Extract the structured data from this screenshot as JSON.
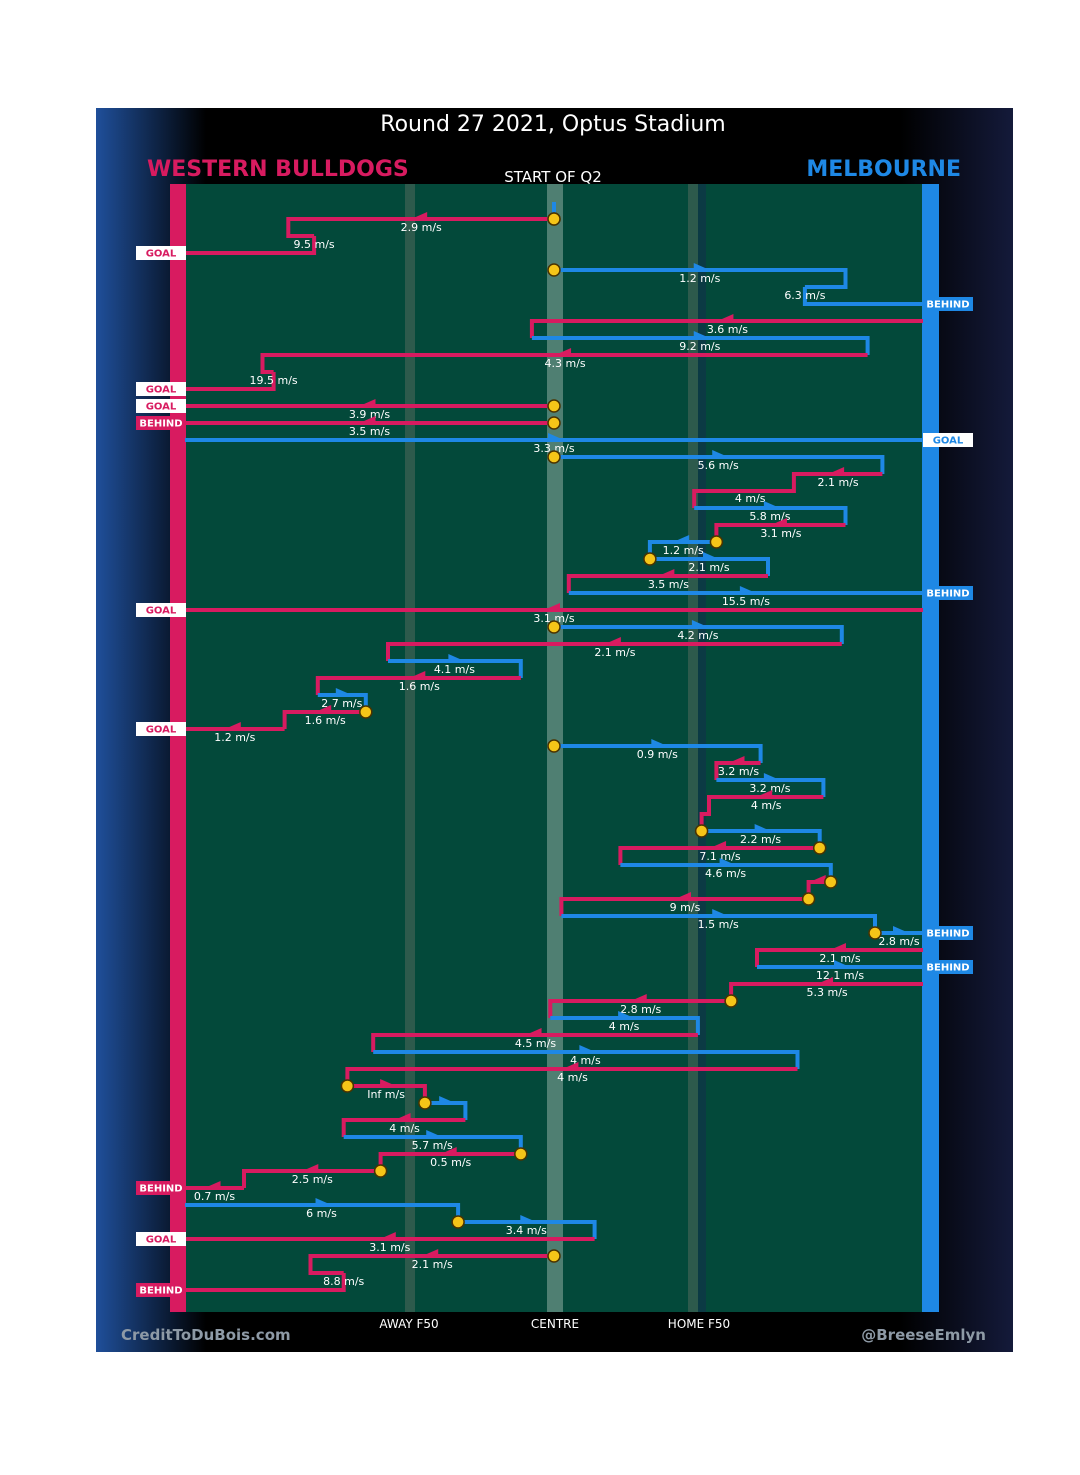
{
  "title": "Round 27 2021, Optus Stadium",
  "subtitle": "START OF Q2",
  "teams": {
    "left": {
      "name": "WESTERN BULLDOGS",
      "color": "#d81b60"
    },
    "right": {
      "name": "MELBOURNE",
      "color": "#1e88e5"
    }
  },
  "axis_labels": [
    "AWAY F50",
    "CENTRE",
    "HOME F50"
  ],
  "credit_left": "CreditToDuBois.com",
  "credit_right": "@BreeseEmlyn",
  "colors": {
    "field": "#03493a",
    "pink": "#d81b60",
    "blue": "#1e88e5",
    "stoppage": "#f5c518",
    "frame": "#000000"
  },
  "chart_data": {
    "type": "line",
    "description_units": "x: field position from left goal (0) to right goal (100); y: chain sequence (top to bottom)",
    "xlim": [
      0,
      100
    ],
    "x_ticks": [
      {
        "label": "AWAY F50",
        "x": 30.4
      },
      {
        "label": "CENTRE",
        "x": 50
      },
      {
        "label": "HOME F50",
        "x": 69.6
      }
    ],
    "stoppage_marker": "circle",
    "chains": [
      {
        "team": "blue",
        "speed": "",
        "end": "",
        "pts": [
          [
            50,
            1
          ],
          [
            50,
            0
          ]
        ],
        "start_marker": true
      },
      {
        "team": "pink",
        "speed": "2.9 m/s",
        "end": "",
        "pts": [
          [
            50,
            1
          ],
          [
            14,
            1
          ],
          [
            14,
            2
          ],
          [
            17.5,
            2
          ]
        ],
        "start_marker": true
      },
      {
        "team": "pink",
        "speed": "9.5 m/s",
        "end": "GOAL",
        "pts": [
          [
            17.5,
            2
          ],
          [
            17.5,
            3
          ],
          [
            0,
            3
          ]
        ]
      },
      {
        "team": "blue",
        "speed": "1.2 m/s",
        "end": "",
        "pts": [
          [
            50,
            4
          ],
          [
            89.5,
            4
          ],
          [
            89.5,
            5
          ],
          [
            84,
            5
          ]
        ],
        "start_marker": true
      },
      {
        "team": "blue",
        "speed": "6.3 m/s",
        "end": "BEHIND",
        "pts": [
          [
            84,
            5
          ],
          [
            84,
            6
          ],
          [
            100,
            6
          ]
        ]
      },
      {
        "team": "pink",
        "speed": "3.6 m/s",
        "end": "",
        "pts": [
          [
            100,
            7
          ],
          [
            47,
            7
          ],
          [
            47,
            8
          ]
        ]
      },
      {
        "team": "blue",
        "speed": "9.2 m/s",
        "end": "",
        "pts": [
          [
            47,
            8
          ],
          [
            92.5,
            8
          ],
          [
            92.5,
            9
          ]
        ]
      },
      {
        "team": "pink",
        "speed": "4.3 m/s",
        "end": "",
        "pts": [
          [
            92.5,
            9
          ],
          [
            10.5,
            9
          ],
          [
            10.5,
            10
          ],
          [
            12,
            10
          ]
        ]
      },
      {
        "team": "pink",
        "speed": "19.5 m/s",
        "end": "GOAL",
        "pts": [
          [
            12,
            10
          ],
          [
            12,
            11
          ],
          [
            0,
            11
          ]
        ]
      },
      {
        "team": "pink",
        "speed": "3.9 m/s",
        "end": "GOAL",
        "pts": [
          [
            50,
            12
          ],
          [
            0,
            12
          ]
        ],
        "start_marker": true
      },
      {
        "team": "pink",
        "speed": "3.5 m/s",
        "end": "BEHIND",
        "pts": [
          [
            50,
            13
          ],
          [
            0,
            13
          ]
        ],
        "start_marker": true
      },
      {
        "team": "blue",
        "speed": "3.3 m/s",
        "end": "GOAL",
        "pts": [
          [
            0,
            14
          ],
          [
            100,
            14
          ]
        ]
      },
      {
        "team": "blue",
        "speed": "5.6 m/s",
        "end": "",
        "pts": [
          [
            50,
            15
          ],
          [
            94.5,
            15
          ],
          [
            94.5,
            16
          ]
        ],
        "start_marker": true
      },
      {
        "team": "pink",
        "speed": "2.1 m/s",
        "end": "",
        "pts": [
          [
            94.5,
            16
          ],
          [
            82.5,
            16
          ],
          [
            82.5,
            17
          ],
          [
            69,
            17
          ],
          [
            69,
            18
          ]
        ]
      },
      {
        "team": "pink",
        "speed": "4 m/s",
        "end": "",
        "pts": []
      },
      {
        "team": "blue",
        "speed": "5.8 m/s",
        "end": "",
        "pts": [
          [
            69,
            18
          ],
          [
            89.5,
            18
          ],
          [
            89.5,
            19
          ]
        ]
      },
      {
        "team": "pink",
        "speed": "3.1 m/s",
        "end": "",
        "pts": [
          [
            89.5,
            19
          ],
          [
            72,
            19
          ],
          [
            72,
            20
          ]
        ]
      },
      {
        "team": "blue",
        "speed": "1.2 m/s",
        "end": "",
        "pts": [
          [
            72,
            20
          ],
          [
            63,
            20
          ],
          [
            63,
            21
          ]
        ],
        "start_marker": true
      },
      {
        "team": "blue",
        "speed": "2.1 m/s",
        "end": "",
        "pts": [
          [
            63,
            21
          ],
          [
            79,
            21
          ],
          [
            79,
            22
          ]
        ],
        "start_marker": true
      },
      {
        "team": "pink",
        "speed": "3.5 m/s",
        "end": "",
        "pts": [
          [
            79,
            22
          ],
          [
            52,
            22
          ],
          [
            52,
            23
          ]
        ]
      },
      {
        "team": "blue",
        "speed": "15.5 m/s",
        "end": "BEHIND",
        "pts": [
          [
            52,
            23
          ],
          [
            100,
            23
          ]
        ]
      },
      {
        "team": "pink",
        "speed": "3.1 m/s",
        "end": "GOAL",
        "pts": [
          [
            100,
            24
          ],
          [
            0,
            24
          ]
        ]
      },
      {
        "team": "blue",
        "speed": "4.2 m/s",
        "end": "",
        "pts": [
          [
            50,
            25
          ],
          [
            89,
            25
          ],
          [
            89,
            26
          ]
        ],
        "start_marker": true
      },
      {
        "team": "pink",
        "speed": "2.1 m/s",
        "end": "",
        "pts": [
          [
            89,
            26
          ],
          [
            27.5,
            26
          ],
          [
            27.5,
            27
          ]
        ]
      },
      {
        "team": "blue",
        "speed": "4.1 m/s",
        "end": "",
        "pts": [
          [
            27.5,
            27
          ],
          [
            45.5,
            27
          ],
          [
            45.5,
            28
          ]
        ]
      },
      {
        "team": "pink",
        "speed": "1.6 m/s",
        "end": "",
        "pts": [
          [
            45.5,
            28
          ],
          [
            18,
            28
          ],
          [
            18,
            29
          ]
        ]
      },
      {
        "team": "blue",
        "speed": "2.7 m/s",
        "end": "",
        "pts": [
          [
            18,
            29
          ],
          [
            24.5,
            29
          ],
          [
            24.5,
            30
          ]
        ]
      },
      {
        "team": "pink",
        "speed": "1.6 m/s",
        "end": "",
        "pts": [
          [
            24.5,
            30
          ],
          [
            13.5,
            30
          ],
          [
            13.5,
            31
          ]
        ],
        "start_marker": true
      },
      {
        "team": "pink",
        "speed": "1.2 m/s",
        "end": "GOAL",
        "pts": [
          [
            13.5,
            31
          ],
          [
            0,
            31
          ]
        ]
      },
      {
        "team": "blue",
        "speed": "0.9 m/s",
        "end": "",
        "pts": [
          [
            50,
            32
          ],
          [
            78,
            32
          ],
          [
            78,
            33
          ]
        ],
        "start_marker": true
      },
      {
        "team": "pink",
        "speed": "3.2 m/s",
        "end": "",
        "pts": [
          [
            78,
            33
          ],
          [
            72,
            33
          ],
          [
            72,
            34
          ]
        ]
      },
      {
        "team": "blue",
        "speed": "3.2 m/s",
        "end": "",
        "pts": [
          [
            72,
            34
          ],
          [
            86.5,
            34
          ],
          [
            86.5,
            35
          ]
        ]
      },
      {
        "team": "pink",
        "speed": "4 m/s",
        "end": "",
        "pts": [
          [
            86.5,
            35
          ],
          [
            71,
            35
          ],
          [
            71,
            36
          ],
          [
            70,
            36
          ],
          [
            70,
            37
          ]
        ]
      },
      {
        "team": "blue",
        "speed": "2.2 m/s",
        "end": "",
        "pts": [
          [
            70,
            37
          ],
          [
            86,
            37
          ],
          [
            86,
            38
          ]
        ],
        "start_marker": true
      },
      {
        "team": "pink",
        "speed": "7.1 m/s",
        "end": "",
        "pts": [
          [
            86,
            38
          ],
          [
            59,
            38
          ],
          [
            59,
            39
          ]
        ],
        "start_marker": true
      },
      {
        "team": "blue",
        "speed": "4.6 m/s",
        "end": "",
        "pts": [
          [
            59,
            39
          ],
          [
            87.5,
            39
          ],
          [
            87.5,
            40
          ]
        ]
      },
      {
        "team": "pink",
        "speed": "",
        "end": "",
        "pts": [
          [
            87.5,
            40
          ],
          [
            84.5,
            40
          ],
          [
            84.5,
            41
          ]
        ],
        "start_marker": true
      },
      {
        "team": "pink",
        "speed": "9 m/s",
        "end": "",
        "pts": [
          [
            84.5,
            41
          ],
          [
            51,
            41
          ],
          [
            51,
            42
          ]
        ],
        "start_marker": true
      },
      {
        "team": "blue",
        "speed": "1.5 m/s",
        "end": "",
        "pts": [
          [
            51,
            42
          ],
          [
            93.5,
            42
          ],
          [
            93.5,
            43
          ]
        ]
      },
      {
        "team": "blue",
        "speed": "2.8 m/s",
        "end": "BEHIND",
        "pts": [
          [
            93.5,
            43
          ],
          [
            100,
            43
          ]
        ],
        "start_marker": true
      },
      {
        "team": "pink",
        "speed": "2.1 m/s",
        "end": "",
        "pts": [
          [
            100,
            44
          ],
          [
            77.5,
            44
          ],
          [
            77.5,
            45
          ]
        ]
      },
      {
        "team": "blue",
        "speed": "12.1 m/s",
        "end": "BEHIND",
        "pts": [
          [
            77.5,
            45
          ],
          [
            100,
            45
          ]
        ]
      },
      {
        "team": "pink",
        "speed": "5.3 m/s",
        "end": "",
        "pts": [
          [
            100,
            46
          ],
          [
            74,
            46
          ],
          [
            74,
            47
          ]
        ]
      },
      {
        "team": "pink",
        "speed": "2.8 m/s",
        "end": "",
        "pts": [
          [
            74,
            47
          ],
          [
            49.5,
            47
          ],
          [
            49.5,
            48
          ]
        ],
        "start_marker": true
      },
      {
        "team": "blue",
        "speed": "4 m/s",
        "end": "",
        "pts": [
          [
            49.5,
            48
          ],
          [
            69.5,
            48
          ],
          [
            69.5,
            49
          ]
        ]
      },
      {
        "team": "pink",
        "speed": "4.5 m/s",
        "end": "",
        "pts": [
          [
            69.5,
            49
          ],
          [
            25.5,
            49
          ],
          [
            25.5,
            50
          ]
        ]
      },
      {
        "team": "blue",
        "speed": "4 m/s",
        "end": "",
        "pts": [
          [
            25.5,
            50
          ],
          [
            83,
            50
          ],
          [
            83,
            51
          ]
        ]
      },
      {
        "team": "pink",
        "speed": "4 m/s",
        "end": "",
        "pts": [
          [
            83,
            51
          ],
          [
            22,
            51
          ],
          [
            22,
            52
          ]
        ]
      },
      {
        "team": "pink",
        "speed": "Inf m/s",
        "end": "",
        "pts": [
          [
            22,
            52
          ],
          [
            32.5,
            52
          ],
          [
            32.5,
            53
          ]
        ],
        "start_marker": true
      },
      {
        "team": "blue",
        "speed": "",
        "end": "",
        "pts": [
          [
            32.5,
            53
          ],
          [
            38,
            53
          ],
          [
            38,
            54
          ]
        ],
        "start_marker": true
      },
      {
        "team": "pink",
        "speed": "4 m/s",
        "end": "",
        "pts": [
          [
            38,
            54
          ],
          [
            21.5,
            54
          ],
          [
            21.5,
            55
          ]
        ]
      },
      {
        "team": "blue",
        "speed": "5.7 m/s",
        "end": "",
        "pts": [
          [
            21.5,
            55
          ],
          [
            45.5,
            55
          ],
          [
            45.5,
            56
          ]
        ]
      },
      {
        "team": "pink",
        "speed": "0.5 m/s",
        "end": "",
        "pts": [
          [
            45.5,
            56
          ],
          [
            26.5,
            56
          ],
          [
            26.5,
            57
          ]
        ],
        "start_marker": true
      },
      {
        "team": "pink",
        "speed": "2.5 m/s",
        "end": "",
        "pts": [
          [
            26.5,
            57
          ],
          [
            8,
            57
          ],
          [
            8,
            58
          ]
        ],
        "start_marker": true
      },
      {
        "team": "pink",
        "speed": "0.7 m/s",
        "end": "BEHIND",
        "pts": [
          [
            8,
            58
          ],
          [
            0,
            58
          ]
        ]
      },
      {
        "team": "blue",
        "speed": "6 m/s",
        "end": "",
        "pts": [
          [
            0,
            59
          ],
          [
            37,
            59
          ],
          [
            37,
            60
          ]
        ]
      },
      {
        "team": "blue",
        "speed": "3.4 m/s",
        "end": "",
        "pts": [
          [
            37,
            60
          ],
          [
            55.5,
            60
          ],
          [
            55.5,
            61
          ]
        ],
        "start_marker": true
      },
      {
        "team": "pink",
        "speed": "3.1 m/s",
        "end": "GOAL",
        "pts": [
          [
            55.5,
            61
          ],
          [
            0,
            61
          ]
        ]
      },
      {
        "team": "pink",
        "speed": "2.1 m/s",
        "end": "",
        "pts": [
          [
            50,
            62
          ],
          [
            17,
            62
          ],
          [
            17,
            63
          ],
          [
            21.5,
            63
          ]
        ],
        "start_marker": true
      },
      {
        "team": "pink",
        "speed": "8.8 m/s",
        "end": "BEHIND",
        "pts": [
          [
            21.5,
            63
          ],
          [
            21.5,
            64
          ],
          [
            0,
            64
          ]
        ]
      }
    ]
  }
}
